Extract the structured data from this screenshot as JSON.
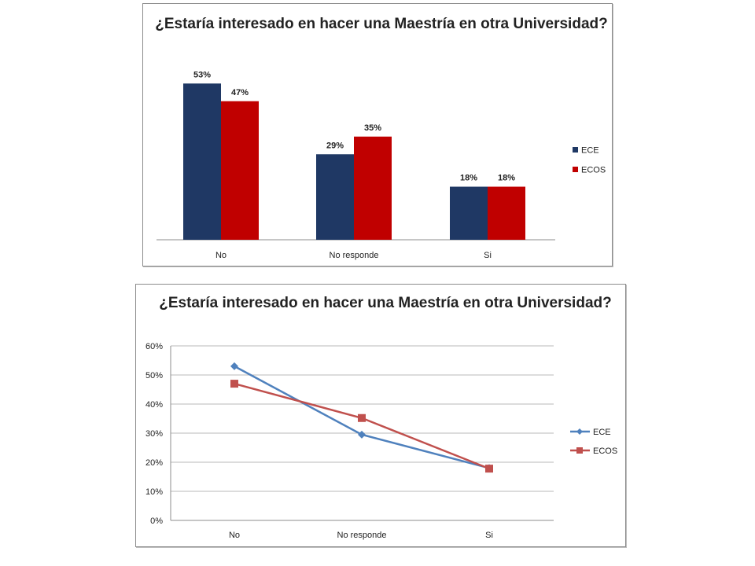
{
  "chart_data": [
    {
      "type": "bar",
      "title": "¿Estaría interesado en hacer una Maestría en otra Universidad?",
      "categories": [
        "No",
        "No responde",
        "Si"
      ],
      "series": [
        {
          "name": "ECE",
          "values": [
            53,
            29,
            18
          ],
          "labels": [
            "53%",
            "29%",
            "18%"
          ],
          "color": "#1f3864"
        },
        {
          "name": "ECOS",
          "values": [
            47,
            35,
            18
          ],
          "labels": [
            "47%",
            "35%",
            "18%"
          ],
          "color": "#c00000"
        }
      ],
      "ylim": [
        0,
        60
      ],
      "legend": "right",
      "grid": false
    },
    {
      "type": "line",
      "title": "¿Estaría interesado en hacer una Maestría en otra Universidad?",
      "categories": [
        "No",
        "No responde",
        "Si"
      ],
      "series": [
        {
          "name": "ECE",
          "values": [
            53,
            29.5,
            18
          ],
          "color": "#4f81bd",
          "marker": "diamond"
        },
        {
          "name": "ECOS",
          "values": [
            47,
            35.2,
            17.8
          ],
          "color": "#c0504d",
          "marker": "square"
        }
      ],
      "yticks": [
        "0%",
        "10%",
        "20%",
        "30%",
        "40%",
        "50%",
        "60%"
      ],
      "ylim": [
        0,
        60
      ],
      "legend": "right",
      "grid": true
    }
  ]
}
